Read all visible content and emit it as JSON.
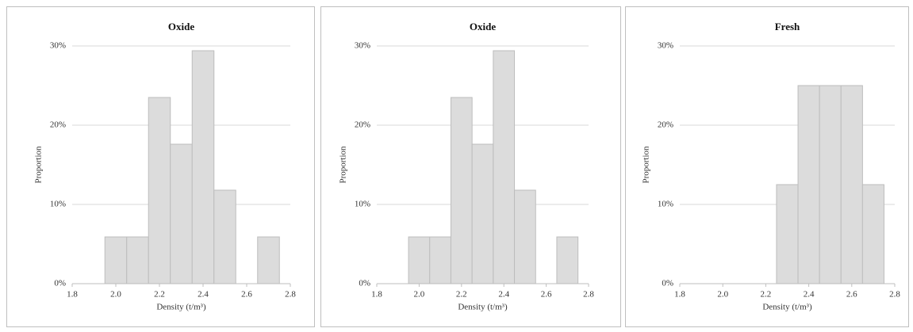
{
  "chart_data": [
    {
      "type": "histogram",
      "title": "Oxide",
      "x_label": "Density (t/m³)",
      "y_label": "Proportion",
      "bins": [
        1.95,
        2.05,
        2.15,
        2.25,
        2.35,
        2.45,
        2.55,
        2.65,
        2.75
      ],
      "values": [
        5.9,
        5.9,
        23.5,
        17.6,
        29.4,
        11.8,
        0,
        5.9
      ],
      "color": "#dcdcdc",
      "xlim": [
        1.8,
        2.8
      ],
      "xticks": [
        1.8,
        {
          "value": 2,
          "label": "2.0"
        },
        2.2,
        2.4,
        2.6,
        2.8
      ],
      "ylim": [
        0,
        30
      ],
      "yticks": [
        {
          "value": 0,
          "label": "0%"
        },
        {
          "value": 10,
          "label": "10%"
        },
        {
          "value": 20,
          "label": "20%"
        },
        {
          "value": 30,
          "label": "30%"
        }
      ],
      "grid": true
    },
    {
      "type": "histogram",
      "title": "Oxide",
      "x_label": "Density (t/m³)",
      "y_label": "Proportion",
      "bins": [
        1.95,
        2.05,
        2.15,
        2.25,
        2.35,
        2.45,
        2.55,
        2.65,
        2.75
      ],
      "values": [
        5.9,
        5.9,
        23.5,
        17.6,
        29.4,
        11.8,
        0,
        5.9
      ],
      "color": "#dcdcdc",
      "xlim": [
        1.8,
        2.8
      ],
      "xticks": [
        1.8,
        {
          "value": 2,
          "label": "2.0"
        },
        2.2,
        2.4,
        2.6,
        2.8
      ],
      "ylim": [
        0,
        30
      ],
      "yticks": [
        {
          "value": 0,
          "label": "0%"
        },
        {
          "value": 10,
          "label": "10%"
        },
        {
          "value": 20,
          "label": "20%"
        },
        {
          "value": 30,
          "label": "30%"
        }
      ],
      "grid": true
    },
    {
      "type": "histogram",
      "title": "Fresh",
      "x_label": "Density (t/m³)",
      "y_label": "Proportion",
      "bins": [
        2.25,
        2.35,
        2.45,
        2.55,
        2.65,
        2.75
      ],
      "values": [
        12.5,
        25,
        25,
        25,
        12.5
      ],
      "color": "#dcdcdc",
      "xlim": [
        1.8,
        2.8
      ],
      "xticks": [
        1.8,
        {
          "value": 2,
          "label": "2.0"
        },
        2.2,
        2.4,
        2.6,
        2.8
      ],
      "ylim": [
        0,
        30
      ],
      "yticks": [
        {
          "value": 0,
          "label": "0%"
        },
        {
          "value": 10,
          "label": "10%"
        },
        {
          "value": 20,
          "label": "20%"
        },
        {
          "value": 30,
          "label": "30%"
        }
      ],
      "grid": true
    }
  ]
}
